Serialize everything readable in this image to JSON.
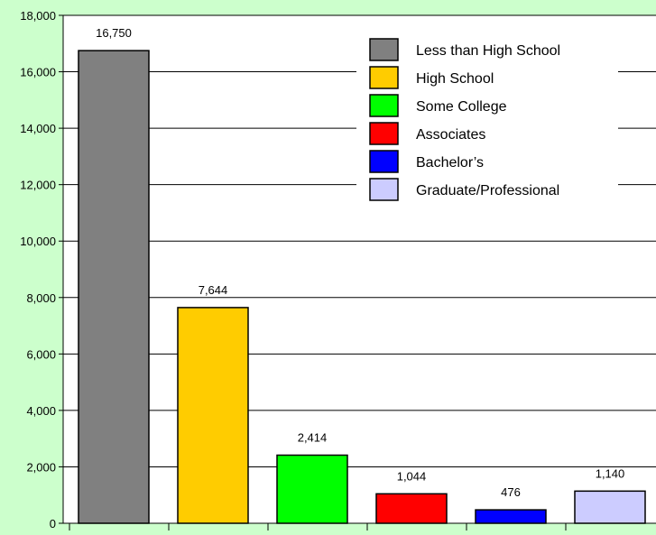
{
  "chart_data": {
    "type": "bar",
    "title": "",
    "xlabel": "",
    "ylabel": "",
    "ylim": [
      0,
      18000
    ],
    "ytick_step": 2000,
    "yticks": [
      "0",
      "2,000",
      "4,000",
      "6,000",
      "8,000",
      "10,000",
      "12,000",
      "14,000",
      "16,000",
      "18,000"
    ],
    "grid": true,
    "legend_position": "top-right",
    "categories": [
      "Less than High School",
      "High School",
      "Some College",
      "Associates",
      "Bachelor’s",
      "Graduate/Professional"
    ],
    "values": [
      16750,
      7644,
      2414,
      1044,
      476,
      1140
    ],
    "data_labels": [
      "16,750",
      "7,644",
      "2,414",
      "1,044",
      "476",
      "1,140"
    ],
    "colors": [
      "#808080",
      "#ffcc00",
      "#00ff00",
      "#ff0000",
      "#0000ff",
      "#ccccff"
    ],
    "plot_background": "#ffffff",
    "page_background": "#ccffcc"
  }
}
